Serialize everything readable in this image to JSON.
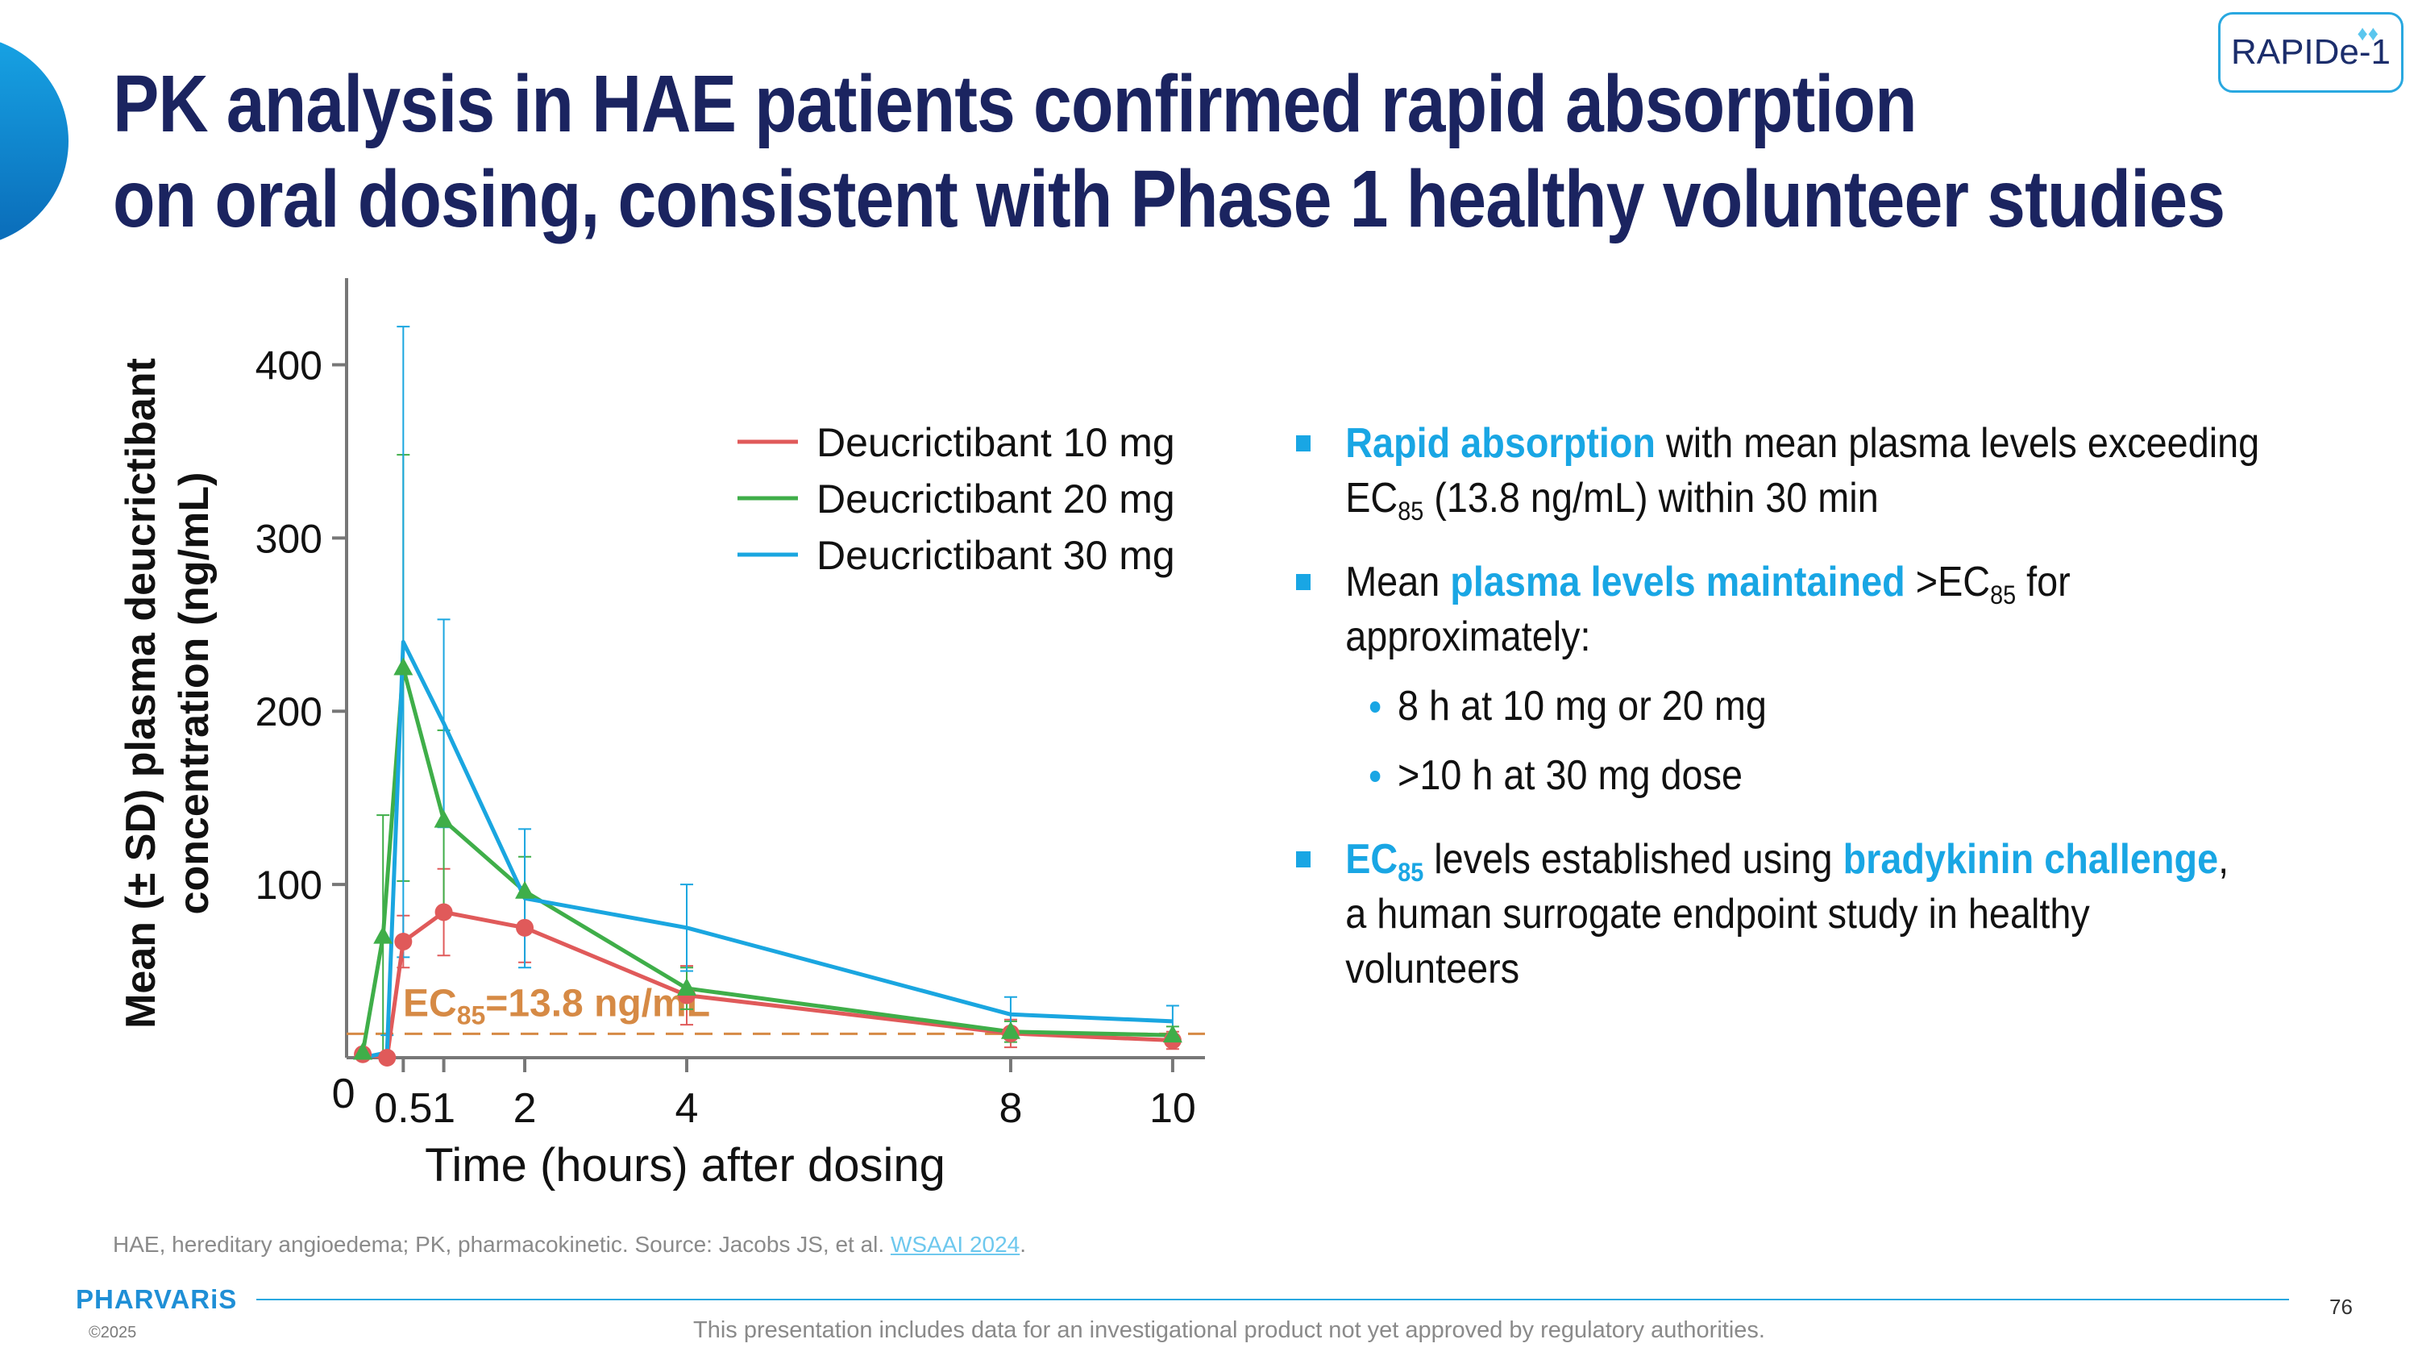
{
  "title": {
    "line1": "PK analysis in HAE patients confirmed rapid absorption",
    "line2": "on oral dosing, consistent with Phase 1 healthy volunteer studies"
  },
  "badge": {
    "label": "RAPIDe-1"
  },
  "chart_data": {
    "type": "line",
    "xlabel": "Time (hours) after dosing",
    "ylabel_line1": "Mean (± SD) plasma deucrictibant",
    "ylabel_line2": "concentration (ng/mL)",
    "xticks": [
      0,
      0.5,
      1,
      2,
      4,
      8,
      10
    ],
    "xtick_labels": [
      "0",
      "0.5",
      "1",
      "2",
      "4",
      "8",
      "10"
    ],
    "yticks": [
      100,
      200,
      300,
      400
    ],
    "ytick_labels": [
      "100",
      "200",
      "300",
      "400"
    ],
    "xlim": [
      -0.2,
      10.2
    ],
    "ylim": [
      0,
      450
    ],
    "grid": false,
    "legend_position": "top-right",
    "reference_line": {
      "value": 13.8,
      "label_prefix": "EC",
      "label_sub": "85",
      "label_suffix": "=13.8 ng/mL",
      "color": "#d68a45"
    },
    "series": [
      {
        "name": "Deucrictibant 10 mg",
        "color": "#e05a5a",
        "marker": "circle",
        "x": [
          0,
          0.3,
          0.5,
          1,
          2,
          4,
          8,
          10
        ],
        "y": [
          2,
          0,
          67,
          84,
          75,
          36,
          14,
          10
        ],
        "err": [
          0,
          0,
          15,
          25,
          20,
          17,
          8,
          5
        ]
      },
      {
        "name": "Deucrictibant 20 mg",
        "color": "#3fae49",
        "marker": "triangle",
        "x": [
          0,
          0.25,
          0.5,
          1,
          2,
          4,
          8,
          10
        ],
        "y": [
          3,
          70,
          225,
          137,
          96,
          40,
          15,
          13
        ],
        "err": [
          0,
          70,
          123,
          52,
          20,
          12,
          6,
          5
        ]
      },
      {
        "name": "Deucrictibant 30 mg",
        "color": "#1aa6e0",
        "marker": "none",
        "x": [
          0,
          0.3,
          0.5,
          1,
          2,
          4,
          8,
          10
        ],
        "y": [
          0,
          3,
          240,
          193,
          92,
          75,
          25,
          21
        ],
        "err": [
          0,
          10,
          182,
          60,
          40,
          25,
          10,
          9
        ]
      }
    ]
  },
  "bullets": {
    "b1": {
      "hl": "Rapid absorption",
      "t1": " with mean plasma levels exceeding",
      "ec": "EC",
      "ec_sub": "85",
      "t2": " (13.8 ng/mL) within 30 min"
    },
    "b2": {
      "t1": "Mean ",
      "hl": "plasma levels maintained",
      "t2": " >EC",
      "ec_sub": "85",
      "t3": " for",
      "t4": "approximately:"
    },
    "sub1": "8 h at 10 mg or 20 mg",
    "sub2": ">10 h at 30 mg dose",
    "b3": {
      "hl1": "EC",
      "hl1_sub": "85",
      "t1": " levels established using ",
      "hl2": "bradykinin challenge",
      "t2": ",",
      "t3": "a human surrogate endpoint study in healthy",
      "t4": "volunteers"
    }
  },
  "footnote": {
    "text": "HAE, hereditary angioedema; PK, pharmacokinetic. Source: Jacobs JS, et al. ",
    "link": "WSAAI 2024",
    "end": "."
  },
  "footer": {
    "logo": "PHARVARiS",
    "copyright": "©2025",
    "page": "76",
    "disclaimer": "This presentation includes data for an investigational product not yet approved by regulatory authorities."
  },
  "colors": {
    "title": "#1b2460",
    "accent": "#19a6e4"
  }
}
